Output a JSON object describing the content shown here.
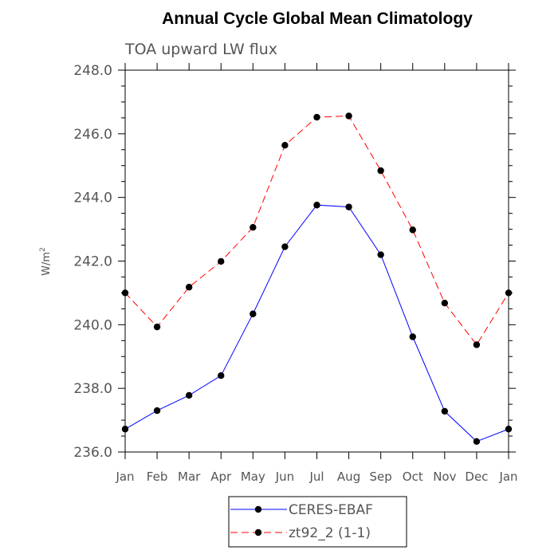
{
  "chart_data": {
    "type": "line",
    "title": "Annual Cycle Global Mean Climatology",
    "subtitle": "TOA upward LW flux",
    "xlabel": "",
    "ylabel": "W/m",
    "ylabel_superscript": "2",
    "ylim": [
      236.0,
      248.0
    ],
    "yticks": [
      "236.0",
      "238.0",
      "240.0",
      "242.0",
      "244.0",
      "246.0",
      "248.0"
    ],
    "categories": [
      "Jan",
      "Feb",
      "Mar",
      "Apr",
      "May",
      "Jun",
      "Jul",
      "Aug",
      "Sep",
      "Oct",
      "Nov",
      "Dec",
      "Jan"
    ],
    "grid": false,
    "legend_position": "bottom-center",
    "series": [
      {
        "name": "CERES-EBAF",
        "color": "#0000ff",
        "dash": "solid",
        "values": [
          236.72,
          237.3,
          237.78,
          238.4,
          240.34,
          242.45,
          243.76,
          243.7,
          242.2,
          239.62,
          237.28,
          236.33,
          236.72
        ]
      },
      {
        "name": "zt92_2 (1-1)",
        "color": "#ff0000",
        "dash": "dashed",
        "values": [
          241.0,
          239.93,
          241.18,
          241.99,
          243.06,
          245.64,
          246.52,
          246.56,
          244.84,
          242.98,
          240.68,
          239.37,
          241.0
        ]
      }
    ]
  }
}
